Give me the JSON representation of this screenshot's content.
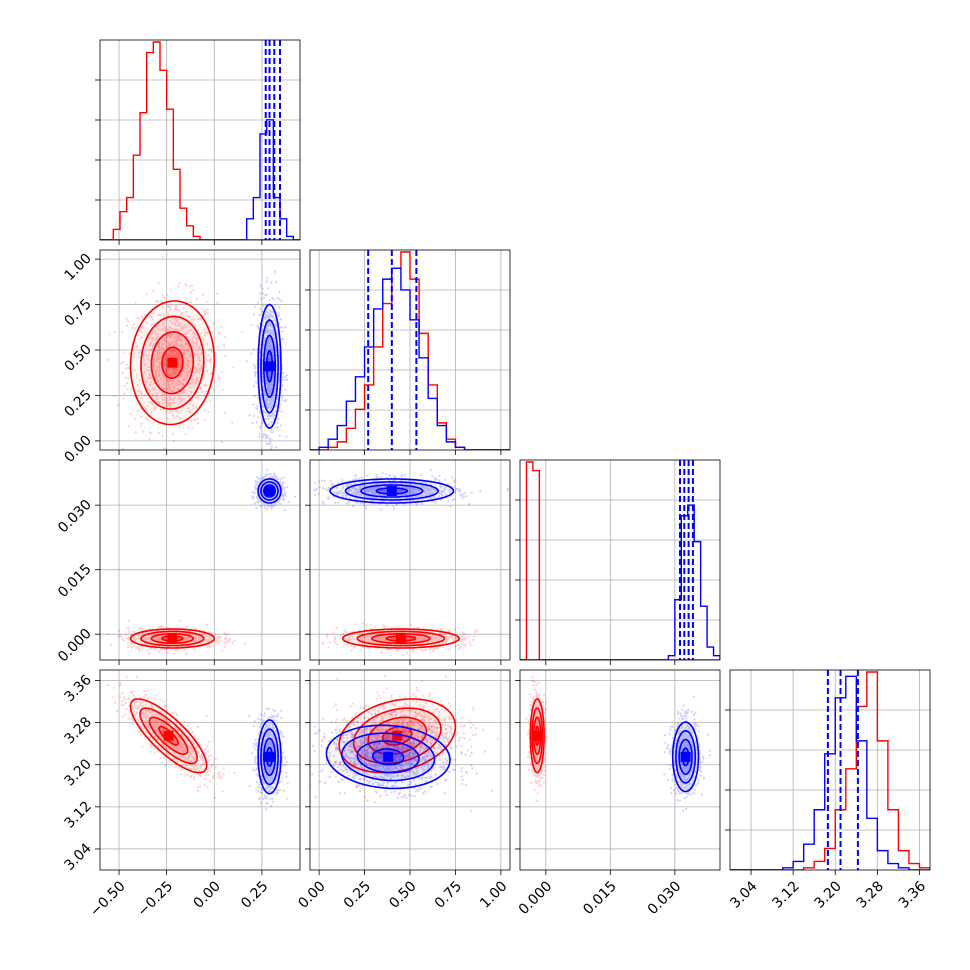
{
  "chart_data": {
    "type": "corner",
    "grid": true,
    "series_colors": {
      "red": "#ff0000",
      "blue": "#0000ff"
    },
    "variables": [
      {
        "range": [
          -0.6,
          0.45
        ],
        "ticks": [
          -0.5,
          -0.25,
          0.0,
          0.25
        ],
        "tick_labels": [
          "−0.50",
          "−0.25",
          "0.00",
          "0.25"
        ]
      },
      {
        "range": [
          -0.05,
          1.05
        ],
        "ticks": [
          0.0,
          0.25,
          0.5,
          0.75,
          1.0
        ],
        "tick_labels": [
          "0.00",
          "0.25",
          "0.50",
          "0.75",
          "1.00"
        ]
      },
      {
        "range": [
          -0.006,
          0.0405
        ],
        "ticks": [
          0.0,
          0.015,
          0.03
        ],
        "tick_labels": [
          "0.000",
          "0.015",
          "0.030"
        ]
      },
      {
        "range": [
          3.0,
          3.38
        ],
        "ticks": [
          3.04,
          3.12,
          3.2,
          3.28,
          3.36
        ],
        "tick_labels": [
          "3.04",
          "3.12",
          "3.20",
          "3.28",
          "3.36"
        ]
      }
    ],
    "blue_quantiles": [
      [
        0.27,
        0.29,
        0.315,
        0.345
      ],
      [
        0.27,
        0.4,
        0.535
      ],
      [
        0.0312,
        0.0322,
        0.0332,
        0.0342
      ],
      [
        3.186,
        3.21,
        3.243
      ]
    ],
    "histograms": [
      {
        "bins": [
          -0.6,
          -0.565,
          -0.53,
          -0.495,
          -0.46,
          -0.425,
          -0.39,
          -0.355,
          -0.32,
          -0.285,
          -0.25,
          -0.215,
          -0.18,
          -0.145,
          -0.11,
          -0.075,
          -0.04,
          -0.005,
          0.03,
          0.065,
          0.1,
          0.135,
          0.17,
          0.205,
          0.24,
          0.275,
          0.31,
          0.345,
          0.38,
          0.415,
          0.45
        ],
        "red": [
          0,
          0,
          3,
          8,
          12,
          24,
          36,
          53,
          56,
          48,
          37,
          20,
          9,
          4,
          1,
          0,
          0,
          0,
          0,
          0,
          0,
          0,
          0,
          0,
          0,
          0,
          0,
          0,
          0,
          0
        ],
        "blue": [
          0,
          0,
          0,
          0,
          0,
          0,
          0,
          0,
          0,
          0,
          0,
          0,
          0,
          0,
          0,
          0,
          0,
          0,
          0,
          0,
          0,
          0,
          6,
          12,
          30,
          34,
          12,
          6,
          1,
          0
        ]
      },
      {
        "bins": [
          -0.05,
          0.0,
          0.05,
          0.1,
          0.15,
          0.2,
          0.25,
          0.3,
          0.35,
          0.4,
          0.45,
          0.5,
          0.55,
          0.6,
          0.65,
          0.7,
          0.75,
          0.8,
          0.85,
          0.9,
          0.95,
          1.0,
          1.05
        ],
        "red": [
          0,
          0,
          1,
          3,
          8,
          15,
          24,
          38,
          54,
          67,
          73,
          63,
          43,
          24,
          10,
          4,
          1,
          0,
          0,
          0,
          0,
          0
        ],
        "blue": [
          0,
          1,
          4,
          9,
          18,
          27,
          38,
          52,
          63,
          67,
          59,
          48,
          34,
          19,
          9,
          3,
          1,
          0,
          0,
          0,
          0,
          0
        ]
      },
      {
        "bins": [
          -0.006,
          -0.0045,
          -0.003,
          -0.0015,
          0.0,
          0.0015,
          0.003,
          0.0045,
          0.006,
          0.0075,
          0.009,
          0.0105,
          0.012,
          0.0135,
          0.015,
          0.0165,
          0.018,
          0.0195,
          0.021,
          0.0225,
          0.024,
          0.0255,
          0.027,
          0.0285,
          0.03,
          0.0315,
          0.033,
          0.0345,
          0.036,
          0.0375,
          0.039,
          0.0405
        ],
        "red": [
          0,
          92,
          88,
          0,
          0,
          0,
          0,
          0,
          0,
          0,
          0,
          0,
          0,
          0,
          0,
          0,
          0,
          0,
          0,
          0,
          0,
          0,
          0,
          0,
          0,
          0,
          0,
          0,
          0,
          0,
          0
        ],
        "blue": [
          0,
          0,
          0,
          0,
          0,
          0,
          0,
          0,
          0,
          0,
          0,
          0,
          0,
          0,
          0,
          0,
          0,
          0,
          0,
          0,
          0,
          0,
          0,
          2,
          28,
          67,
          72,
          55,
          25,
          6,
          2
        ]
      },
      {
        "bins": [
          3.0,
          3.02,
          3.04,
          3.06,
          3.08,
          3.1,
          3.12,
          3.14,
          3.16,
          3.18,
          3.2,
          3.22,
          3.24,
          3.26,
          3.28,
          3.3,
          3.32,
          3.34,
          3.36,
          3.38
        ],
        "red": [
          0,
          0,
          0,
          0,
          0,
          0,
          0,
          1,
          4,
          10,
          28,
          47,
          76,
          92,
          60,
          28,
          9,
          3,
          1
        ],
        "blue": [
          0,
          0,
          0,
          0,
          0,
          1,
          4,
          12,
          28,
          54,
          80,
          90,
          60,
          24,
          9,
          3,
          1,
          0,
          0
        ]
      }
    ],
    "pairs": [
      {
        "row": 1,
        "col": 0,
        "red": {
          "center": [
            -0.22,
            0.43
          ],
          "spread": [
            0.11,
            0.17
          ],
          "rho": 0.05
        },
        "blue": {
          "center": [
            0.29,
            0.41
          ],
          "spread": [
            0.03,
            0.17
          ],
          "rho": 0.0
        }
      },
      {
        "row": 2,
        "col": 0,
        "red": {
          "center": [
            -0.22,
            -0.001
          ],
          "spread": [
            0.11,
            0.0011
          ],
          "rho": 0.0
        },
        "blue": {
          "center": [
            0.29,
            0.0333
          ],
          "spread": [
            0.03,
            0.0014
          ],
          "rho": 0.0
        }
      },
      {
        "row": 2,
        "col": 1,
        "red": {
          "center": [
            0.45,
            -0.001
          ],
          "spread": [
            0.16,
            0.0011
          ],
          "rho": 0.0
        },
        "blue": {
          "center": [
            0.4,
            0.0333
          ],
          "spread": [
            0.17,
            0.0014
          ],
          "rho": 0.0
        }
      },
      {
        "row": 3,
        "col": 0,
        "red": {
          "center": [
            -0.24,
            3.255
          ],
          "spread": [
            0.1,
            0.035
          ],
          "rho": -0.8
        },
        "blue": {
          "center": [
            0.29,
            3.215
          ],
          "spread": [
            0.03,
            0.035
          ],
          "rho": 0.0
        }
      },
      {
        "row": 3,
        "col": 1,
        "red": {
          "center": [
            0.43,
            3.255
          ],
          "spread": [
            0.16,
            0.035
          ],
          "rho": 0.25
        },
        "blue": {
          "center": [
            0.38,
            3.215
          ],
          "spread": [
            0.17,
            0.03
          ],
          "rho": -0.1
        }
      },
      {
        "row": 3,
        "col": 2,
        "red": {
          "center": [
            -0.002,
            3.255
          ],
          "spread": [
            0.0008,
            0.035
          ],
          "rho": 0.0
        },
        "blue": {
          "center": [
            0.0325,
            3.215
          ],
          "spread": [
            0.0015,
            0.033
          ],
          "rho": 0.0
        }
      }
    ]
  }
}
